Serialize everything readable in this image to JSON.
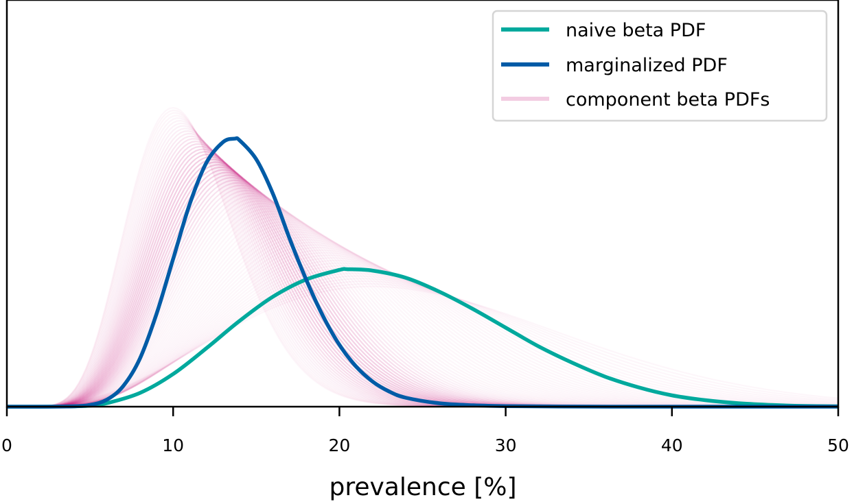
{
  "chart_data": {
    "type": "line",
    "title": "",
    "xlabel": "prevalence [%]",
    "ylabel": "",
    "xlim": [
      0,
      50
    ],
    "ylim": [
      0,
      1.0
    ],
    "y_ticks_shown": false,
    "grid": false,
    "legend_position": "top-right",
    "x_ticks": [
      0,
      10,
      20,
      30,
      40,
      50
    ],
    "x_tick_labels": [
      "0",
      "10",
      "20",
      "30",
      "40",
      "50"
    ],
    "series": [
      {
        "name": "naive beta PDF",
        "color": "#00a99d",
        "x": [
          0,
          2,
          4,
          5,
          6,
          8,
          10,
          12,
          14,
          16,
          18,
          20,
          20.5,
          22,
          24,
          26,
          28,
          30,
          32,
          34,
          36,
          38,
          40,
          42,
          44,
          46,
          48,
          50
        ],
        "y": [
          0,
          0,
          0.001,
          0.003,
          0.01,
          0.04,
          0.095,
          0.17,
          0.25,
          0.32,
          0.37,
          0.398,
          0.4,
          0.396,
          0.375,
          0.335,
          0.285,
          0.23,
          0.175,
          0.128,
          0.087,
          0.056,
          0.033,
          0.019,
          0.01,
          0.005,
          0.002,
          0.001
        ]
      },
      {
        "name": "marginalized PDF",
        "color": "#005ba6",
        "x": [
          0,
          2,
          4,
          5,
          6,
          7,
          8,
          9,
          10,
          11,
          12,
          13,
          13.7,
          14,
          15,
          16,
          17,
          18,
          19,
          20,
          21,
          22,
          23,
          24,
          26,
          28,
          30,
          35,
          40,
          50
        ],
        "y": [
          0,
          0,
          0.001,
          0.005,
          0.02,
          0.06,
          0.14,
          0.27,
          0.43,
          0.59,
          0.71,
          0.77,
          0.78,
          0.775,
          0.72,
          0.62,
          0.49,
          0.37,
          0.265,
          0.18,
          0.117,
          0.073,
          0.044,
          0.026,
          0.01,
          0.004,
          0.0015,
          0.0002,
          0,
          0
        ]
      },
      {
        "name": "component beta PDFs",
        "color": "#c2006f"
      }
    ]
  }
}
